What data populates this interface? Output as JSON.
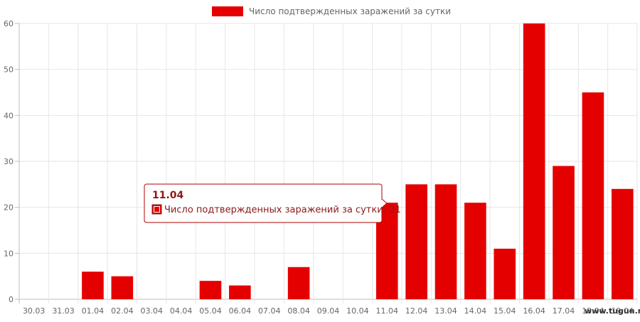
{
  "chart_data": {
    "type": "bar",
    "categories": [
      "30.03",
      "31.03",
      "01.04",
      "02.04",
      "03.04",
      "04.04",
      "05.04",
      "06.04",
      "07.04",
      "08.04",
      "09.04",
      "10.04",
      "11.04",
      "12.04",
      "13.04",
      "14.04",
      "15.04",
      "16.04",
      "17.04",
      "18.04",
      "19.04"
    ],
    "series": [
      {
        "name": "Число подтвержденных заражений за сутки",
        "values": [
          0,
          0,
          6,
          5,
          0,
          0,
          4,
          3,
          0,
          7,
          0,
          0,
          21,
          25,
          25,
          21,
          11,
          60,
          29,
          45,
          24
        ]
      }
    ],
    "ylim": [
      0,
      60
    ],
    "yticks": [
      0,
      10,
      20,
      30,
      40,
      50,
      60
    ],
    "grid": true,
    "legend_position": "top-center",
    "bar_color": "#e50000",
    "tooltip": {
      "category_index": 12,
      "title": "11.04",
      "text": "Число подтвержденных заражений за сутки: 21"
    }
  },
  "watermark": "www.tugun.ru"
}
